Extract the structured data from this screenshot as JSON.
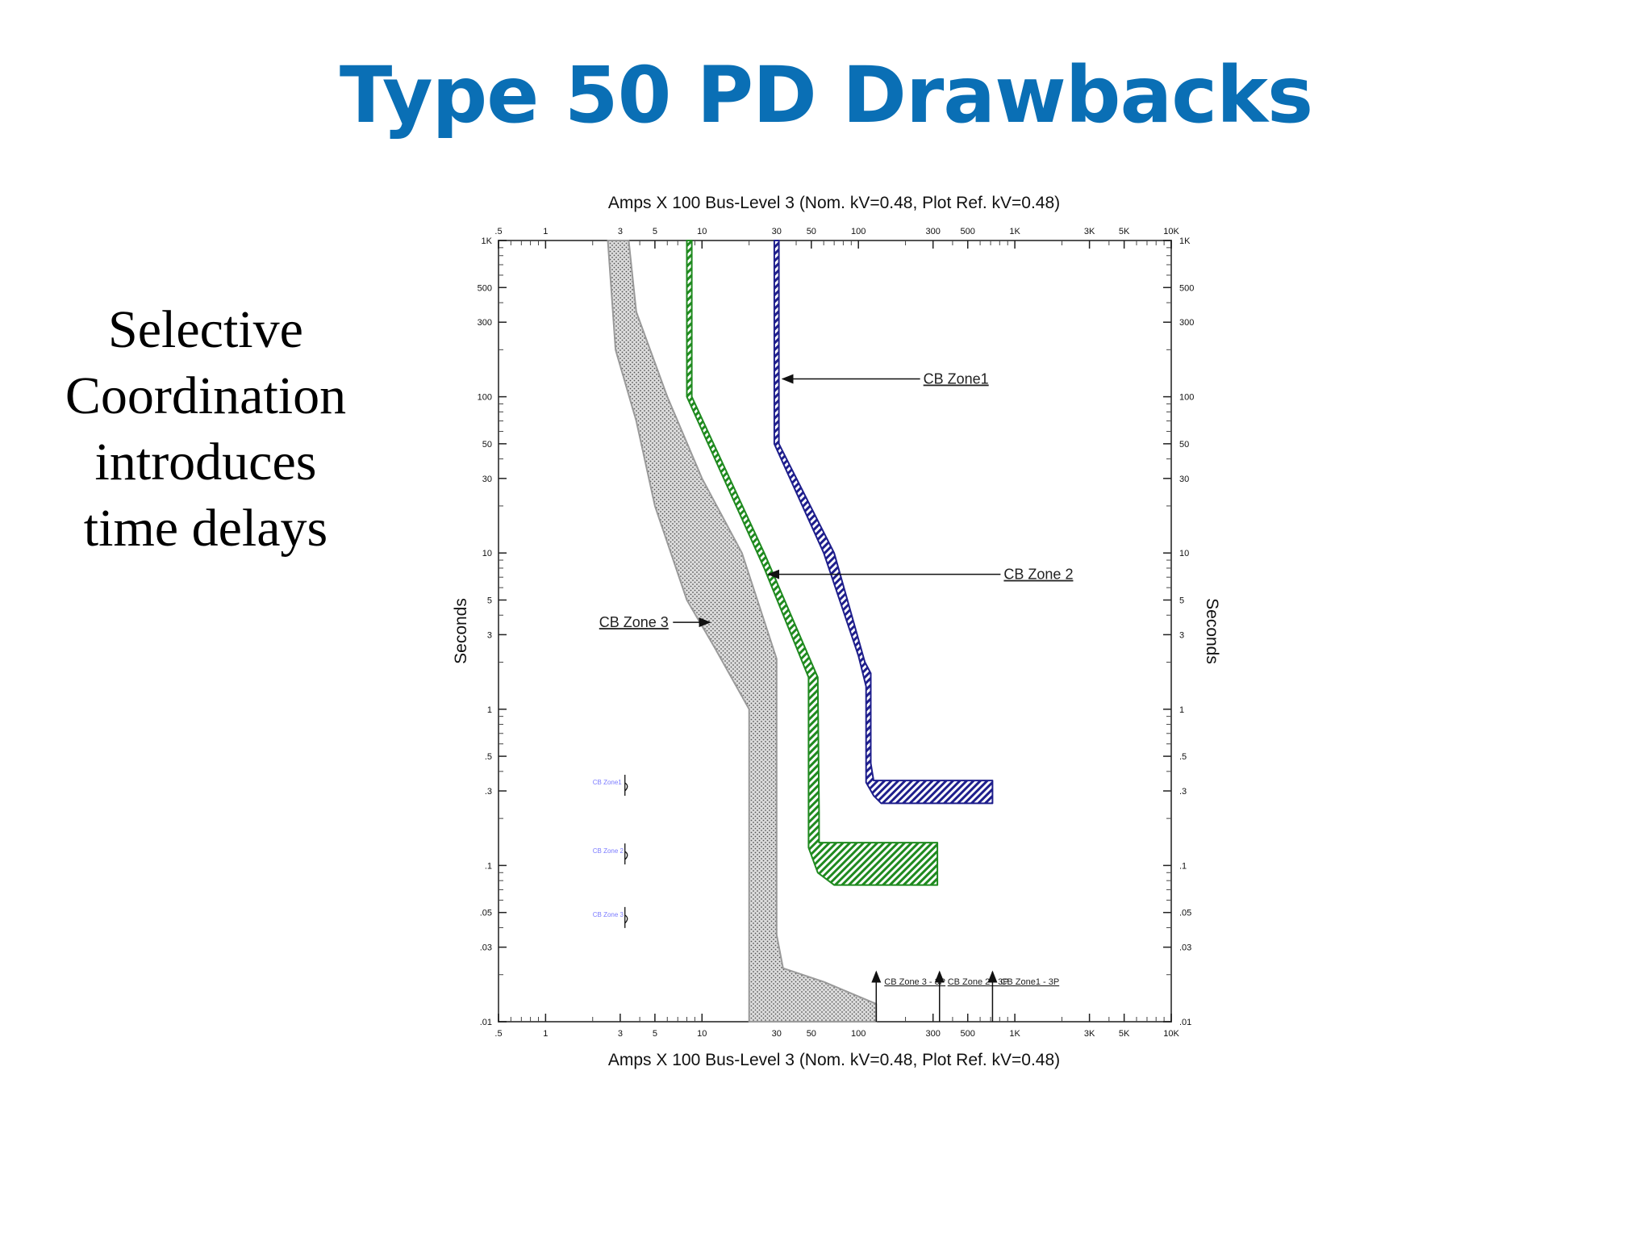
{
  "slide": {
    "title": "Type 50 PD Drawbacks",
    "side_text": [
      "Selective",
      "Coordination",
      "introduces",
      "time delays"
    ]
  },
  "chart_data": {
    "type": "line",
    "title": "",
    "top_xlabel": "Amps  X  100   Bus-Level 3 (Nom. kV=0.48, Plot Ref. kV=0.48)",
    "bottom_xlabel": "Amps  X  100   Bus-Level 3 (Nom. kV=0.48, Plot Ref. kV=0.48)",
    "ylabel_left": "Seconds",
    "ylabel_right": "Seconds",
    "x_scale": "log",
    "y_scale": "log",
    "xlim": [
      0.5,
      10000
    ],
    "ylim": [
      0.01,
      1000
    ],
    "grid": false,
    "x_ticks": [
      {
        "v": 0.5,
        "label": ".5"
      },
      {
        "v": 1,
        "label": "1"
      },
      {
        "v": 3,
        "label": "3"
      },
      {
        "v": 5,
        "label": "5"
      },
      {
        "v": 10,
        "label": "10"
      },
      {
        "v": 30,
        "label": "30"
      },
      {
        "v": 50,
        "label": "50"
      },
      {
        "v": 100,
        "label": "100"
      },
      {
        "v": 300,
        "label": "300"
      },
      {
        "v": 500,
        "label": "500"
      },
      {
        "v": 1000,
        "label": "1K"
      },
      {
        "v": 3000,
        "label": "3K"
      },
      {
        "v": 5000,
        "label": "5K"
      },
      {
        "v": 10000,
        "label": "10K"
      }
    ],
    "y_ticks": [
      {
        "v": 1000,
        "label": "1K"
      },
      {
        "v": 500,
        "label": "500"
      },
      {
        "v": 300,
        "label": "300"
      },
      {
        "v": 100,
        "label": "100"
      },
      {
        "v": 50,
        "label": "50"
      },
      {
        "v": 30,
        "label": "30"
      },
      {
        "v": 10,
        "label": "10"
      },
      {
        "v": 5,
        "label": "5"
      },
      {
        "v": 3,
        "label": "3"
      },
      {
        "v": 1,
        "label": "1"
      },
      {
        "v": 0.5,
        "label": ".5"
      },
      {
        "v": 0.3,
        "label": ".3"
      },
      {
        "v": 0.1,
        "label": ".1"
      },
      {
        "v": 0.05,
        "label": ".05"
      },
      {
        "v": 0.03,
        "label": ".03"
      },
      {
        "v": 0.01,
        "label": ".01"
      }
    ],
    "series": [
      {
        "name": "CB Zone 3",
        "color": "#9a9a9a",
        "pattern": "dots",
        "band": [
          [
            2.5,
            1000
          ],
          [
            3.4,
            1000
          ],
          [
            3.8,
            350
          ],
          [
            6,
            100
          ],
          [
            10,
            30
          ],
          [
            18,
            10
          ],
          [
            30,
            2.1
          ],
          [
            30,
            0.036
          ],
          [
            33,
            0.022
          ],
          [
            60,
            0.018
          ],
          [
            130,
            0.013
          ],
          [
            130,
            0.01
          ],
          [
            20,
            0.01
          ],
          [
            20,
            1
          ],
          [
            12,
            2.5
          ],
          [
            8,
            5
          ],
          [
            5,
            20
          ],
          [
            3.8,
            70
          ],
          [
            2.8,
            200
          ],
          [
            2.5,
            1000
          ]
        ]
      },
      {
        "name": "CB Zone 2",
        "color": "#1f8a1f",
        "pattern": "hatch",
        "band": [
          [
            8,
            1000
          ],
          [
            8.6,
            1000
          ],
          [
            8.6,
            100
          ],
          [
            25,
            10
          ],
          [
            55,
            1.6
          ],
          [
            56,
            0.22
          ],
          [
            56,
            0.14
          ],
          [
            320,
            0.14
          ],
          [
            320,
            0.075
          ],
          [
            70,
            0.075
          ],
          [
            55,
            0.09
          ],
          [
            48,
            0.13
          ],
          [
            48,
            1.6
          ],
          [
            25,
            8
          ],
          [
            8,
            100
          ],
          [
            8,
            1000
          ]
        ]
      },
      {
        "name": "CB Zone1",
        "color": "#1e1e8c",
        "pattern": "hatch",
        "band": [
          [
            29,
            1000
          ],
          [
            31,
            1000
          ],
          [
            31,
            50
          ],
          [
            70,
            10
          ],
          [
            110,
            2.0
          ],
          [
            120,
            1.7
          ],
          [
            120,
            0.45
          ],
          [
            125,
            0.35
          ],
          [
            720,
            0.35
          ],
          [
            720,
            0.25
          ],
          [
            140,
            0.25
          ],
          [
            125,
            0.28
          ],
          [
            112,
            0.34
          ],
          [
            112,
            1.4
          ],
          [
            100,
            2.2
          ],
          [
            60,
            10
          ],
          [
            29,
            50
          ],
          [
            29,
            1000
          ]
        ]
      }
    ],
    "annotations": [
      {
        "text": "CB Zone1",
        "label_at": [
          260,
          130
        ],
        "arrow_to": [
          32,
          130
        ]
      },
      {
        "text": "CB Zone 2",
        "label_at": [
          850,
          7.3
        ],
        "arrow_to": [
          26,
          7.3
        ]
      },
      {
        "text": "CB Zone 3",
        "label_at": [
          2.2,
          3.6
        ],
        "arrow_to": [
          11.5,
          3.6
        ]
      }
    ],
    "bottom_markers": [
      {
        "text": "CB Zone 3 - 3P",
        "x": 130
      },
      {
        "text": "CB Zone 2 - 3P",
        "x": 330
      },
      {
        "text": "CB Zone1 - 3P",
        "x": 720
      }
    ],
    "faint_markers": [
      {
        "text": "CB Zone1",
        "y": 0.33
      },
      {
        "text": "CB Zone 2",
        "y": 0.12
      },
      {
        "text": "CB Zone 3",
        "y": 0.047
      }
    ]
  }
}
